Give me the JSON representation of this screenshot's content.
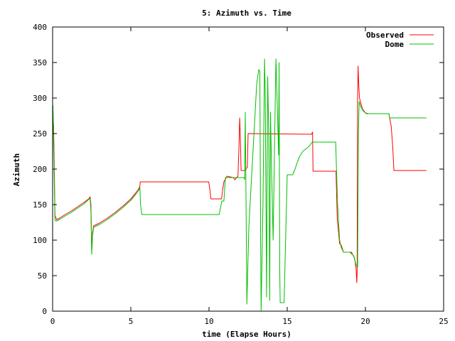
{
  "chart_data": {
    "type": "line",
    "title": "5: Azimuth vs. Time",
    "xlabel": "time (Elapse Hours)",
    "ylabel": "Azimuth",
    "xlim": [
      0,
      25
    ],
    "ylim": [
      0,
      400
    ],
    "x_ticks": [
      0,
      5,
      10,
      15,
      20,
      25
    ],
    "y_ticks": [
      0,
      50,
      100,
      150,
      200,
      250,
      300,
      350,
      400
    ],
    "grid": false,
    "legend": "top-right",
    "series": [
      {
        "name": "Observed",
        "color": "#ff0000",
        "points": [
          [
            0.0,
            210
          ],
          [
            0.02,
            275
          ],
          [
            0.06,
            262
          ],
          [
            0.1,
            215
          ],
          [
            0.15,
            135
          ],
          [
            0.25,
            129
          ],
          [
            0.45,
            131
          ],
          [
            0.8,
            136
          ],
          [
            1.2,
            141
          ],
          [
            1.6,
            147
          ],
          [
            2.0,
            153
          ],
          [
            2.3,
            158
          ],
          [
            2.4,
            161
          ],
          [
            2.45,
            150
          ],
          [
            2.5,
            85
          ],
          [
            2.55,
            110
          ],
          [
            2.62,
            120
          ],
          [
            3.0,
            124
          ],
          [
            3.5,
            131
          ],
          [
            4.0,
            139
          ],
          [
            4.5,
            148
          ],
          [
            5.0,
            158
          ],
          [
            5.3,
            166
          ],
          [
            5.5,
            172
          ],
          [
            5.58,
            176
          ],
          [
            5.6,
            182
          ],
          [
            9.98,
            182
          ],
          [
            10.05,
            172
          ],
          [
            10.12,
            158
          ],
          [
            10.8,
            158
          ],
          [
            10.88,
            172
          ],
          [
            10.95,
            182
          ],
          [
            11.15,
            190
          ],
          [
            11.55,
            188
          ],
          [
            11.65,
            185
          ],
          [
            11.85,
            190
          ],
          [
            11.92,
            235
          ],
          [
            11.96,
            272
          ],
          [
            12.0,
            248
          ],
          [
            12.05,
            198
          ],
          [
            12.3,
            198
          ],
          [
            12.45,
            203
          ],
          [
            12.5,
            250
          ],
          [
            16.45,
            249
          ],
          [
            16.55,
            249
          ],
          [
            16.62,
            252
          ],
          [
            16.65,
            197
          ],
          [
            18.12,
            197
          ],
          [
            18.2,
            130
          ],
          [
            18.35,
            95
          ],
          [
            18.45,
            93
          ],
          [
            18.6,
            83
          ],
          [
            19.1,
            83
          ],
          [
            19.3,
            75
          ],
          [
            19.4,
            60
          ],
          [
            19.45,
            40
          ],
          [
            19.47,
            55
          ],
          [
            19.5,
            300
          ],
          [
            19.53,
            345
          ],
          [
            19.57,
            320
          ],
          [
            19.62,
            300
          ],
          [
            19.8,
            285
          ],
          [
            20.0,
            279
          ],
          [
            20.2,
            278
          ],
          [
            21.5,
            278
          ],
          [
            21.65,
            260
          ],
          [
            21.75,
            230
          ],
          [
            21.82,
            198
          ],
          [
            23.9,
            198
          ]
        ]
      },
      {
        "name": "Dome",
        "color": "#00c000",
        "points": [
          [
            0.0,
            290
          ],
          [
            0.02,
            289
          ],
          [
            0.06,
            255
          ],
          [
            0.1,
            190
          ],
          [
            0.15,
            128
          ],
          [
            0.25,
            127
          ],
          [
            0.45,
            129
          ],
          [
            0.8,
            134
          ],
          [
            1.2,
            139
          ],
          [
            1.6,
            145
          ],
          [
            2.0,
            151
          ],
          [
            2.3,
            157
          ],
          [
            2.4,
            159
          ],
          [
            2.45,
            140
          ],
          [
            2.5,
            80
          ],
          [
            2.55,
            105
          ],
          [
            2.62,
            118
          ],
          [
            3.0,
            122
          ],
          [
            3.5,
            129
          ],
          [
            4.0,
            137
          ],
          [
            4.5,
            146
          ],
          [
            5.0,
            156
          ],
          [
            5.3,
            164
          ],
          [
            5.5,
            170
          ],
          [
            5.58,
            174
          ],
          [
            5.62,
            150
          ],
          [
            5.7,
            136
          ],
          [
            10.65,
            136
          ],
          [
            10.75,
            147
          ],
          [
            10.82,
            155
          ],
          [
            10.95,
            155
          ],
          [
            11.05,
            188
          ],
          [
            12.25,
            188
          ],
          [
            12.28,
            185
          ],
          [
            12.32,
            280
          ],
          [
            12.42,
            10
          ],
          [
            12.55,
            120
          ],
          [
            13.05,
            320
          ],
          [
            13.18,
            340
          ],
          [
            13.25,
            338
          ],
          [
            13.3,
            100
          ],
          [
            13.33,
            0
          ],
          [
            13.45,
            150
          ],
          [
            13.55,
            355
          ],
          [
            13.6,
            300
          ],
          [
            13.68,
            20
          ],
          [
            13.75,
            330
          ],
          [
            13.82,
            250
          ],
          [
            13.88,
            15
          ],
          [
            13.93,
            280
          ],
          [
            14.0,
            200
          ],
          [
            14.1,
            100
          ],
          [
            14.2,
            250
          ],
          [
            14.28,
            355
          ],
          [
            14.35,
            300
          ],
          [
            14.45,
            220
          ],
          [
            14.48,
            350
          ],
          [
            14.52,
            60
          ],
          [
            14.55,
            12
          ],
          [
            14.8,
            12
          ],
          [
            15.0,
            192
          ],
          [
            15.35,
            192
          ],
          [
            15.5,
            200
          ],
          [
            15.65,
            210
          ],
          [
            15.8,
            218
          ],
          [
            16.0,
            225
          ],
          [
            16.4,
            232
          ],
          [
            16.6,
            238
          ],
          [
            18.1,
            238
          ],
          [
            18.15,
            200
          ],
          [
            18.22,
            150
          ],
          [
            18.35,
            100
          ],
          [
            18.45,
            90
          ],
          [
            18.6,
            83
          ],
          [
            19.0,
            83
          ],
          [
            19.25,
            78
          ],
          [
            19.4,
            65
          ],
          [
            19.5,
            62
          ],
          [
            19.55,
            250
          ],
          [
            19.6,
            295
          ],
          [
            19.7,
            288
          ],
          [
            19.85,
            282
          ],
          [
            20.05,
            278
          ],
          [
            21.5,
            278
          ],
          [
            21.55,
            272
          ],
          [
            23.9,
            272
          ]
        ]
      }
    ]
  }
}
